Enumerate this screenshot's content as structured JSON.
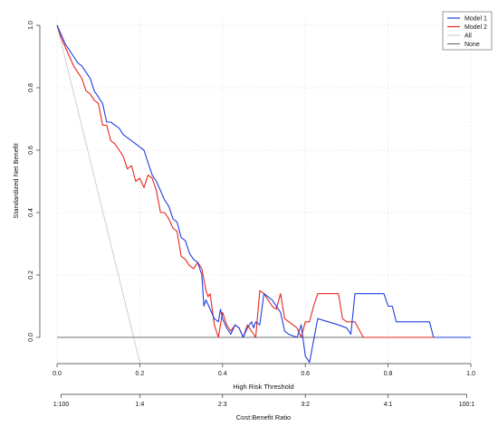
{
  "chart_data": {
    "type": "line",
    "title": "",
    "xlabel": "High Risk Threshold",
    "ylabel": "Standardized Net Benefit",
    "x2label": "Cost:Benefit Ratio",
    "xlim": [
      0,
      1
    ],
    "ylim": [
      -0.08,
      1.0
    ],
    "x_ticks": [
      {
        "value": 0.0,
        "label": "0.0"
      },
      {
        "value": 0.2,
        "label": "0.2"
      },
      {
        "value": 0.4,
        "label": "0.4"
      },
      {
        "value": 0.6,
        "label": "0.6"
      },
      {
        "value": 0.8,
        "label": "0.8"
      },
      {
        "value": 1.0,
        "label": "1.0"
      }
    ],
    "y_ticks": [
      {
        "value": 0.0,
        "label": "0.0"
      },
      {
        "value": 0.2,
        "label": "0.2"
      },
      {
        "value": 0.4,
        "label": "0.4"
      },
      {
        "value": 0.6,
        "label": "0.6"
      },
      {
        "value": 0.8,
        "label": "0.8"
      },
      {
        "value": 1.0,
        "label": "1.0"
      }
    ],
    "x2_ticks": [
      {
        "value": 0.0099,
        "label": "1:100"
      },
      {
        "value": 0.2,
        "label": "1:4"
      },
      {
        "value": 0.4,
        "label": "2:3"
      },
      {
        "value": 0.6,
        "label": "3:2"
      },
      {
        "value": 0.8,
        "label": "4:1"
      },
      {
        "value": 0.9901,
        "label": "100:1"
      }
    ],
    "grid": true,
    "legend_position": "top-right",
    "series": [
      {
        "name": "Model 1",
        "color": "#1f3fe0",
        "points": [
          [
            0.0,
            1.0
          ],
          [
            0.01,
            0.97
          ],
          [
            0.02,
            0.94
          ],
          [
            0.03,
            0.92
          ],
          [
            0.04,
            0.9
          ],
          [
            0.05,
            0.88
          ],
          [
            0.06,
            0.87
          ],
          [
            0.07,
            0.85
          ],
          [
            0.08,
            0.83
          ],
          [
            0.09,
            0.79
          ],
          [
            0.1,
            0.77
          ],
          [
            0.11,
            0.75
          ],
          [
            0.12,
            0.69
          ],
          [
            0.13,
            0.69
          ],
          [
            0.14,
            0.68
          ],
          [
            0.15,
            0.67
          ],
          [
            0.16,
            0.65
          ],
          [
            0.17,
            0.64
          ],
          [
            0.18,
            0.63
          ],
          [
            0.19,
            0.62
          ],
          [
            0.2,
            0.61
          ],
          [
            0.21,
            0.6
          ],
          [
            0.22,
            0.56
          ],
          [
            0.23,
            0.52
          ],
          [
            0.24,
            0.5
          ],
          [
            0.25,
            0.47
          ],
          [
            0.26,
            0.44
          ],
          [
            0.27,
            0.42
          ],
          [
            0.28,
            0.38
          ],
          [
            0.29,
            0.37
          ],
          [
            0.3,
            0.32
          ],
          [
            0.31,
            0.31
          ],
          [
            0.32,
            0.27
          ],
          [
            0.33,
            0.25
          ],
          [
            0.34,
            0.24
          ],
          [
            0.35,
            0.2
          ],
          [
            0.355,
            0.1
          ],
          [
            0.36,
            0.12
          ],
          [
            0.37,
            0.09
          ],
          [
            0.38,
            0.06
          ],
          [
            0.39,
            0.05
          ],
          [
            0.395,
            0.09
          ],
          [
            0.4,
            0.06
          ],
          [
            0.41,
            0.03
          ],
          [
            0.42,
            0.01
          ],
          [
            0.43,
            0.04
          ],
          [
            0.44,
            0.03
          ],
          [
            0.45,
            0.0
          ],
          [
            0.46,
            0.03
          ],
          [
            0.47,
            0.05
          ],
          [
            0.475,
            0.03
          ],
          [
            0.48,
            0.05
          ],
          [
            0.49,
            0.04
          ],
          [
            0.5,
            0.14
          ],
          [
            0.52,
            0.12
          ],
          [
            0.54,
            0.08
          ],
          [
            0.55,
            0.02
          ],
          [
            0.56,
            0.01
          ],
          [
            0.58,
            0.0
          ],
          [
            0.59,
            0.04
          ],
          [
            0.6,
            -0.06
          ],
          [
            0.61,
            -0.08
          ],
          [
            0.63,
            0.06
          ],
          [
            0.68,
            0.04
          ],
          [
            0.7,
            0.03
          ],
          [
            0.71,
            0.01
          ],
          [
            0.72,
            0.14
          ],
          [
            0.79,
            0.14
          ],
          [
            0.8,
            0.1
          ],
          [
            0.81,
            0.1
          ],
          [
            0.82,
            0.05
          ],
          [
            0.9,
            0.05
          ],
          [
            0.91,
            0.0
          ],
          [
            1.0,
            0.0
          ]
        ]
      },
      {
        "name": "Model 2",
        "color": "#e8261c",
        "points": [
          [
            0.0,
            1.0
          ],
          [
            0.01,
            0.96
          ],
          [
            0.02,
            0.93
          ],
          [
            0.03,
            0.9
          ],
          [
            0.04,
            0.87
          ],
          [
            0.05,
            0.85
          ],
          [
            0.06,
            0.83
          ],
          [
            0.07,
            0.79
          ],
          [
            0.08,
            0.78
          ],
          [
            0.09,
            0.76
          ],
          [
            0.1,
            0.75
          ],
          [
            0.11,
            0.68
          ],
          [
            0.12,
            0.68
          ],
          [
            0.13,
            0.63
          ],
          [
            0.14,
            0.62
          ],
          [
            0.15,
            0.6
          ],
          [
            0.16,
            0.58
          ],
          [
            0.17,
            0.54
          ],
          [
            0.18,
            0.55
          ],
          [
            0.19,
            0.5
          ],
          [
            0.2,
            0.51
          ],
          [
            0.21,
            0.48
          ],
          [
            0.22,
            0.52
          ],
          [
            0.23,
            0.51
          ],
          [
            0.24,
            0.47
          ],
          [
            0.25,
            0.4
          ],
          [
            0.26,
            0.4
          ],
          [
            0.27,
            0.38
          ],
          [
            0.28,
            0.35
          ],
          [
            0.29,
            0.34
          ],
          [
            0.3,
            0.26
          ],
          [
            0.31,
            0.25
          ],
          [
            0.32,
            0.23
          ],
          [
            0.33,
            0.22
          ],
          [
            0.34,
            0.24
          ],
          [
            0.35,
            0.22
          ],
          [
            0.36,
            0.15
          ],
          [
            0.365,
            0.13
          ],
          [
            0.37,
            0.14
          ],
          [
            0.38,
            0.04
          ],
          [
            0.39,
            0.0
          ],
          [
            0.4,
            0.08
          ],
          [
            0.41,
            0.04
          ],
          [
            0.42,
            0.02
          ],
          [
            0.43,
            0.04
          ],
          [
            0.44,
            0.03
          ],
          [
            0.45,
            0.0
          ],
          [
            0.46,
            0.04
          ],
          [
            0.47,
            0.02
          ],
          [
            0.48,
            0.0
          ],
          [
            0.49,
            0.15
          ],
          [
            0.5,
            0.14
          ],
          [
            0.52,
            0.1
          ],
          [
            0.53,
            0.09
          ],
          [
            0.54,
            0.14
          ],
          [
            0.55,
            0.06
          ],
          [
            0.57,
            0.04
          ],
          [
            0.58,
            0.03
          ],
          [
            0.59,
            0.0
          ],
          [
            0.6,
            0.05
          ],
          [
            0.61,
            0.05
          ],
          [
            0.62,
            0.1
          ],
          [
            0.63,
            0.14
          ],
          [
            0.68,
            0.14
          ],
          [
            0.69,
            0.06
          ],
          [
            0.7,
            0.05
          ],
          [
            0.71,
            0.05
          ],
          [
            0.72,
            0.05
          ],
          [
            0.74,
            0.0
          ],
          [
            1.0,
            0.0
          ]
        ]
      },
      {
        "name": "All",
        "color": "#cfcfcf",
        "points": [
          [
            0.0,
            1.0
          ],
          [
            0.2,
            -0.08
          ]
        ]
      },
      {
        "name": "None",
        "color": "#707070",
        "points": [
          [
            0.0,
            0.0
          ],
          [
            1.0,
            0.0
          ]
        ]
      }
    ]
  }
}
